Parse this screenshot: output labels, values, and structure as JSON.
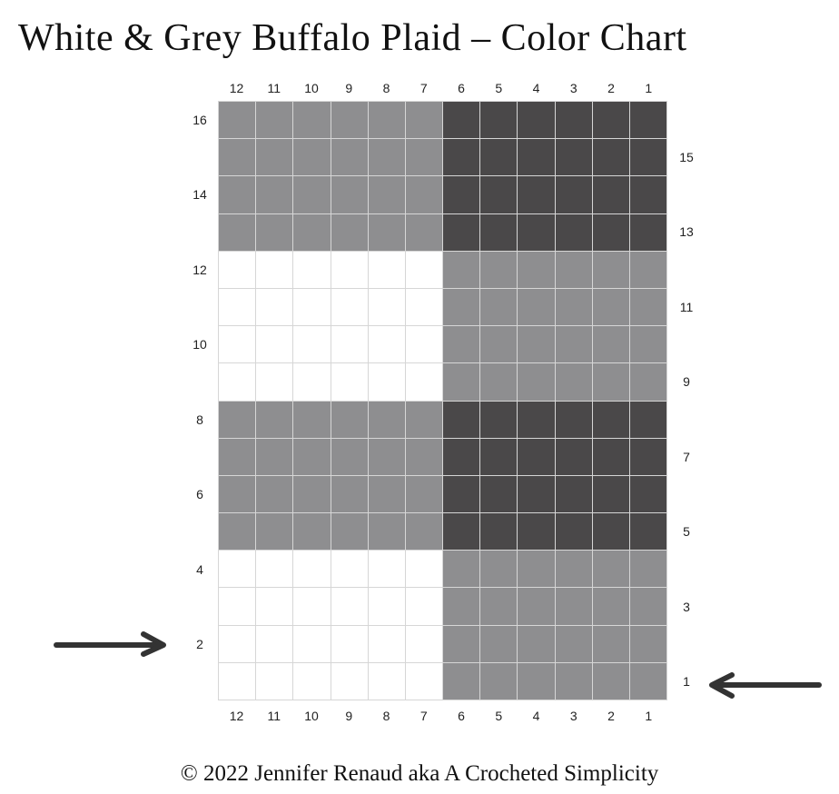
{
  "title": "White & Grey Buffalo Plaid – Color Chart",
  "copyright": "© 2022 Jennifer Renaud aka A Crocheted Simplicity",
  "column_labels": [
    "12",
    "11",
    "10",
    "9",
    "8",
    "7",
    "6",
    "5",
    "4",
    "3",
    "2",
    "1"
  ],
  "row_labels_left": [
    "16",
    "14",
    "12",
    "10",
    "8",
    "6",
    "4",
    "2"
  ],
  "row_labels_right": [
    "15",
    "13",
    "11",
    "9",
    "7",
    "5",
    "3",
    "1"
  ],
  "colors": {
    "white": "#ffffff",
    "grey": "#8e8e90",
    "dark": "#4a4849",
    "gridline": "#d6d6d6",
    "arrow": "#333333"
  },
  "pattern": {
    "columns": 12,
    "rows": 16,
    "block_rows": [
      {
        "rows": "16-13",
        "left_cols_12_7": "grey",
        "right_cols_6_1": "dark"
      },
      {
        "rows": "12-9",
        "left_cols_12_7": "white",
        "right_cols_6_1": "grey"
      },
      {
        "rows": "8-5",
        "left_cols_12_7": "grey",
        "right_cols_6_1": "dark"
      },
      {
        "rows": "4-1",
        "left_cols_12_7": "white",
        "right_cols_6_1": "grey"
      }
    ]
  },
  "arrows": [
    {
      "points_to_row": "2",
      "side": "left",
      "direction": "right"
    },
    {
      "points_to_row": "1",
      "side": "right",
      "direction": "left"
    }
  ]
}
